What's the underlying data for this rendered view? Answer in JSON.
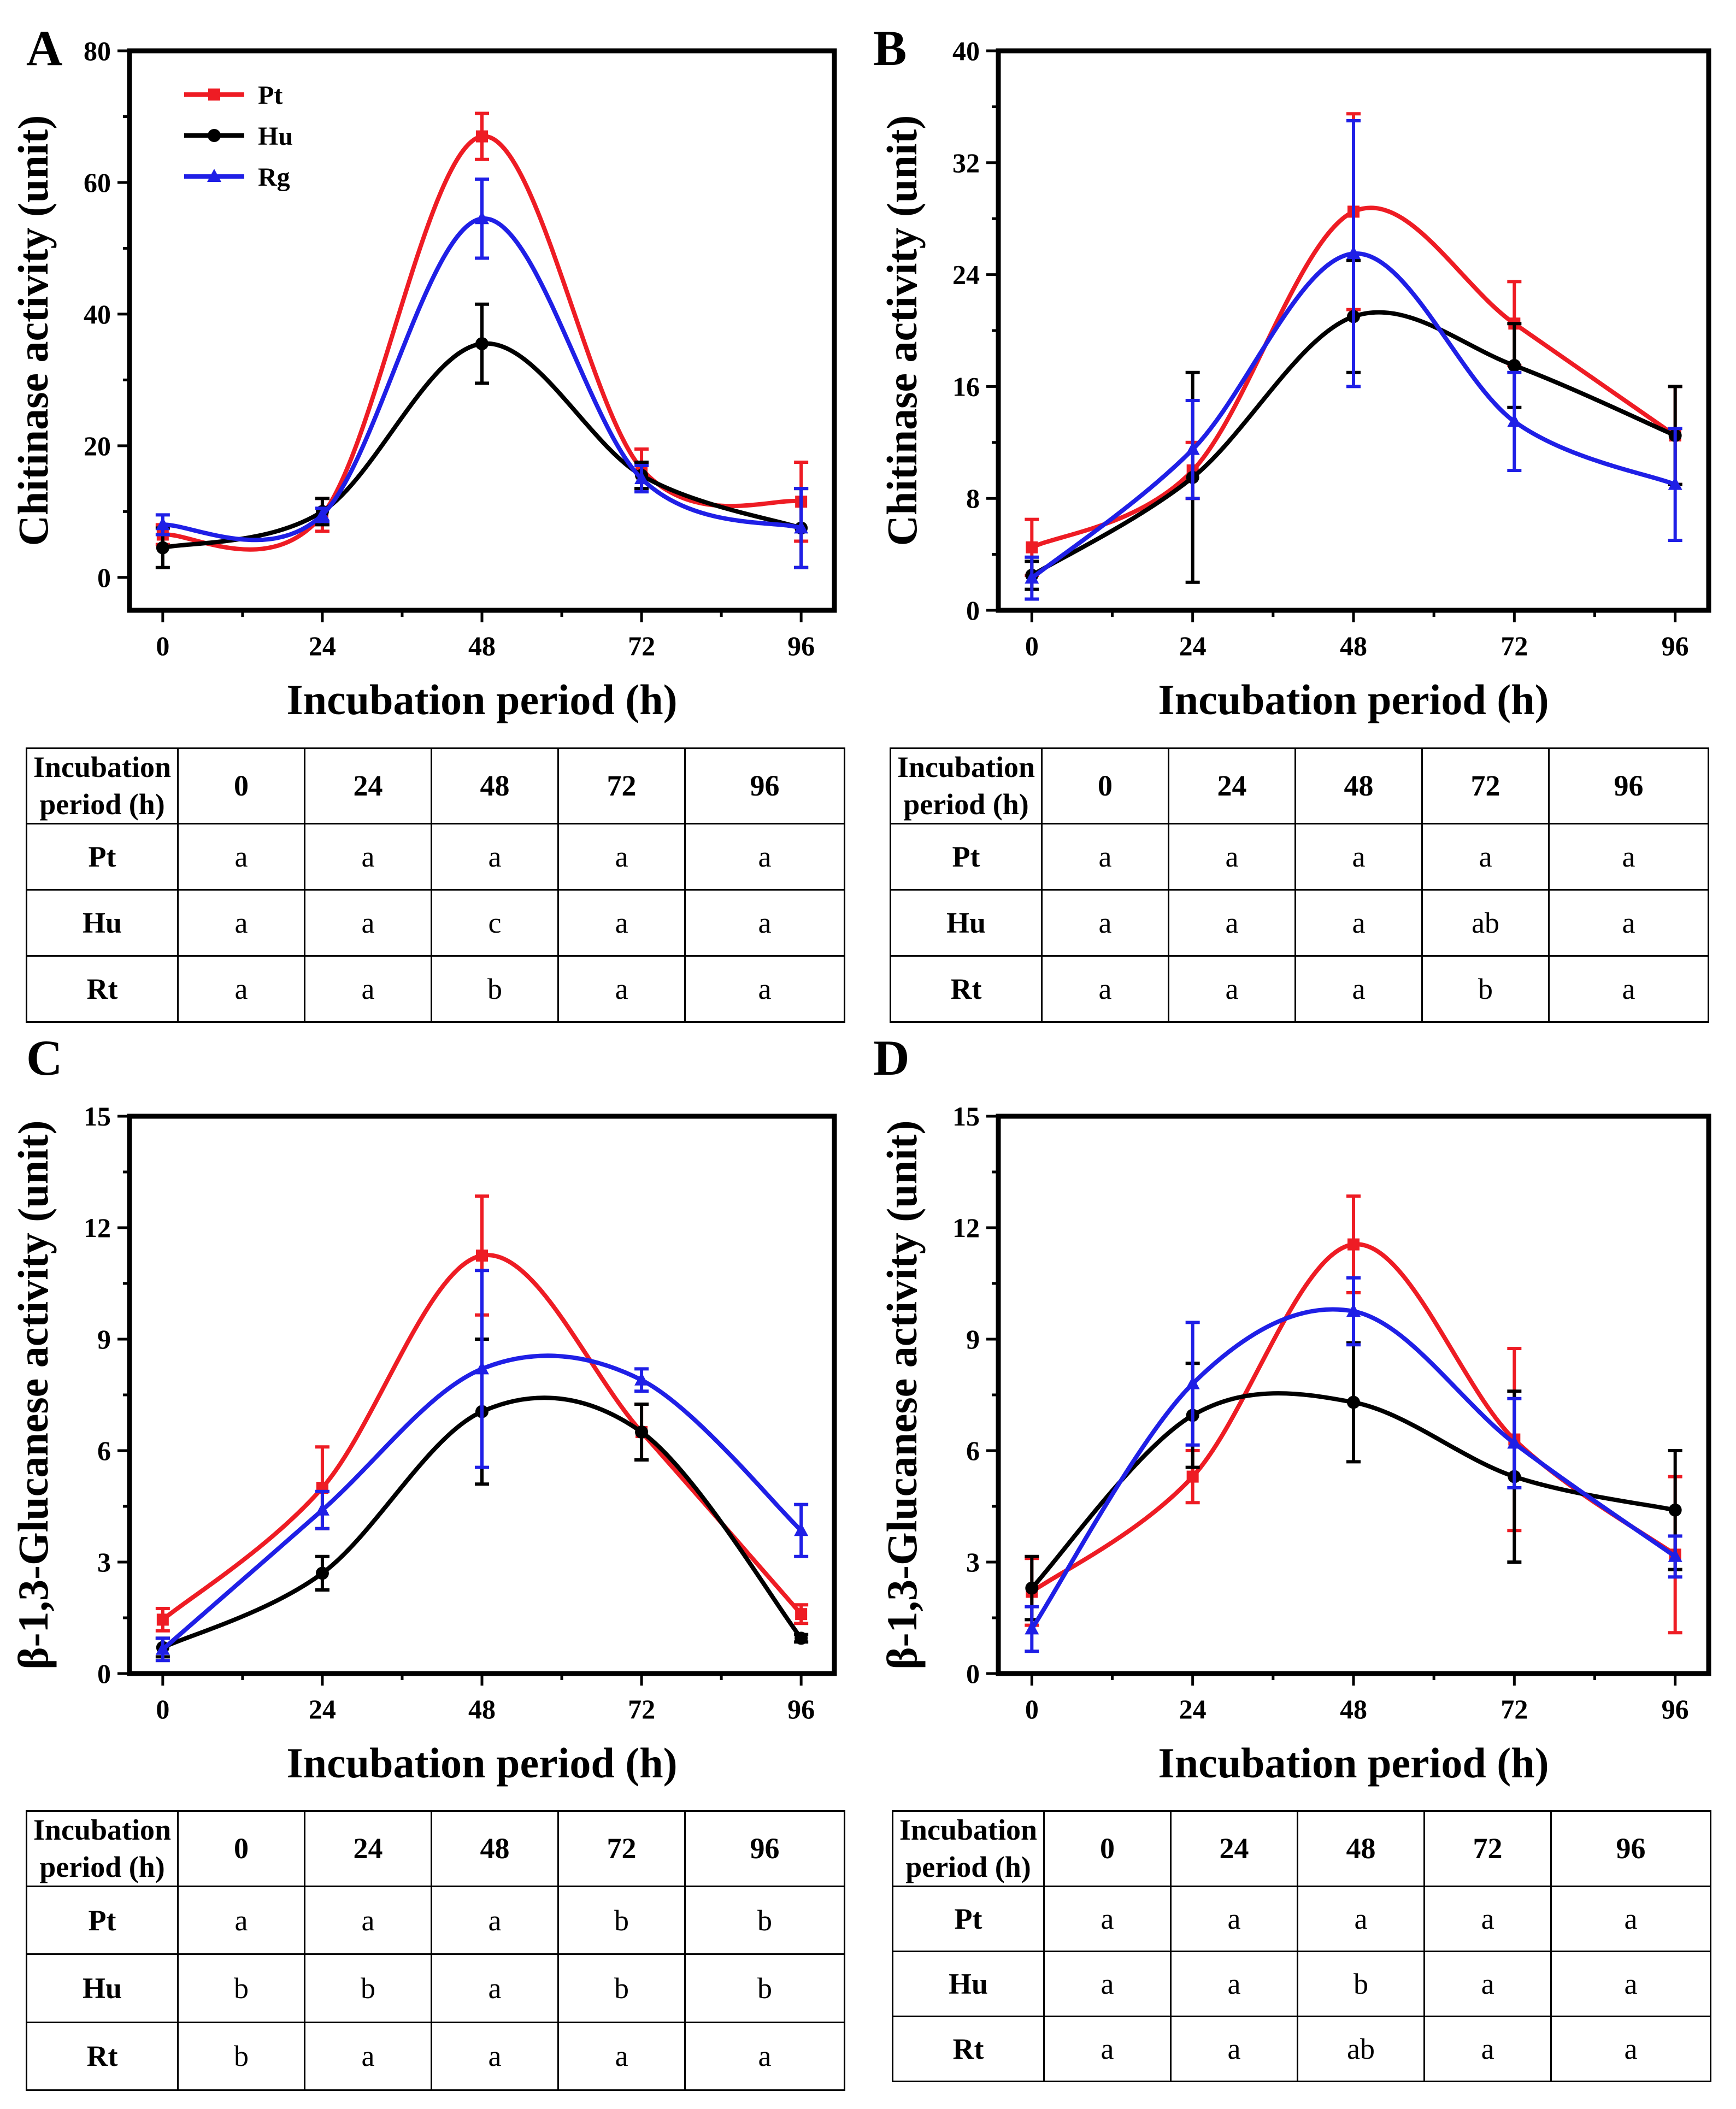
{
  "colors": {
    "Pt": "#ee1c24",
    "Hu": "#000000",
    "Rg": "#1f1fe6"
  },
  "legend": {
    "Pt": "Pt",
    "Hu": "Hu",
    "Rg": "Rg"
  },
  "chart_data": [
    {
      "panel": "A",
      "type": "line",
      "xlabel": "Incubation period (h)",
      "ylabel": "Chitinase activity (unit)",
      "x": [
        0,
        24,
        48,
        72,
        96
      ],
      "xlim": [
        -5,
        101
      ],
      "ylim": [
        -5,
        80
      ],
      "yticks": [
        0,
        20,
        40,
        60,
        80
      ],
      "series": [
        {
          "name": "Pt",
          "values": [
            6.5,
            9.5,
            67,
            16.5,
            11.5
          ],
          "errors": [
            1.5,
            2.5,
            3.5,
            3,
            6
          ]
        },
        {
          "name": "Hu",
          "values": [
            4.5,
            10,
            35.5,
            15.5,
            7.5
          ],
          "errors": [
            3,
            2,
            6,
            2,
            6
          ]
        },
        {
          "name": "Rg",
          "values": [
            8,
            9.5,
            54.5,
            15,
            7.5
          ],
          "errors": [
            1.5,
            1,
            6,
            2,
            6
          ]
        }
      ]
    },
    {
      "panel": "B",
      "type": "line",
      "xlabel": "Incubation period (h)",
      "ylabel": "Chitinase activity (unit)",
      "x": [
        0,
        24,
        48,
        72,
        96
      ],
      "xlim": [
        -5,
        101
      ],
      "ylim": [
        0,
        40
      ],
      "yticks": [
        0,
        8,
        16,
        24,
        32,
        40
      ],
      "series": [
        {
          "name": "Pt",
          "values": [
            4.5,
            10,
            28.5,
            20.5,
            12.5
          ],
          "errors": [
            2,
            2,
            7,
            3,
            3.5
          ]
        },
        {
          "name": "Hu",
          "values": [
            2.5,
            9.5,
            21,
            17.5,
            12.5
          ],
          "errors": [
            1,
            7.5,
            4,
            3,
            3.5
          ]
        },
        {
          "name": "Rg",
          "values": [
            2.3,
            11.5,
            25.5,
            13.5,
            9
          ],
          "errors": [
            1.5,
            3.5,
            9.5,
            3.5,
            4
          ]
        }
      ]
    },
    {
      "panel": "C",
      "type": "line",
      "xlabel": "Incubation period (h)",
      "ylabel": "β-1,3-Glucanese activity (unit)",
      "x": [
        0,
        24,
        48,
        72,
        96
      ],
      "xlim": [
        -5,
        101
      ],
      "ylim": [
        0,
        15
      ],
      "yticks": [
        0,
        3,
        6,
        9,
        12,
        15
      ],
      "series": [
        {
          "name": "Pt",
          "values": [
            1.45,
            5,
            11.25,
            6.5,
            1.6
          ],
          "errors": [
            0.3,
            1.1,
            1.6,
            0.75,
            0.25
          ]
        },
        {
          "name": "Hu",
          "values": [
            0.7,
            2.7,
            7.05,
            6.5,
            0.95
          ],
          "errors": [
            0.25,
            0.45,
            1.95,
            0.75,
            0.1
          ]
        },
        {
          "name": "Rg",
          "values": [
            0.65,
            4.4,
            8.2,
            7.9,
            3.85
          ],
          "errors": [
            0.3,
            0.5,
            2.65,
            0.3,
            0.7
          ]
        }
      ]
    },
    {
      "panel": "D",
      "type": "line",
      "xlabel": "Incubation period (h)",
      "ylabel": "β-1,3-Glucanese activity (unit)",
      "x": [
        0,
        24,
        48,
        72,
        96
      ],
      "xlim": [
        -5,
        101
      ],
      "ylim": [
        0,
        15
      ],
      "yticks": [
        0,
        3,
        6,
        9,
        12,
        15
      ],
      "series": [
        {
          "name": "Pt",
          "values": [
            2.2,
            5.3,
            11.55,
            6.3,
            3.2
          ],
          "errors": [
            0.9,
            0.7,
            1.3,
            2.45,
            2.1
          ]
        },
        {
          "name": "Hu",
          "values": [
            2.3,
            6.95,
            7.3,
            5.3,
            4.4
          ],
          "errors": [
            0.85,
            1.4,
            1.6,
            2.3,
            1.6
          ]
        },
        {
          "name": "Rg",
          "values": [
            1.2,
            7.8,
            9.75,
            6.2,
            3.15
          ],
          "errors": [
            0.6,
            1.65,
            0.9,
            1.2,
            0.55
          ]
        }
      ]
    }
  ],
  "tables": [
    {
      "header": {
        "line1": "Incubation",
        "line2": "period (h)"
      },
      "cols": [
        "0",
        "24",
        "48",
        "72",
        "96"
      ],
      "rows": [
        {
          "label": "Pt",
          "cells": [
            "a",
            "a",
            "a",
            "a",
            "a"
          ]
        },
        {
          "label": "Hu",
          "cells": [
            "a",
            "a",
            "c",
            "a",
            "a"
          ]
        },
        {
          "label": "Rt",
          "cells": [
            "a",
            "a",
            "b",
            "a",
            "a"
          ]
        }
      ]
    },
    {
      "header": {
        "line1": "Incubation",
        "line2": "period (h)"
      },
      "cols": [
        "0",
        "24",
        "48",
        "72",
        "96"
      ],
      "rows": [
        {
          "label": "Pt",
          "cells": [
            "a",
            "a",
            "a",
            "a",
            "a"
          ]
        },
        {
          "label": "Hu",
          "cells": [
            "a",
            "a",
            "a",
            "ab",
            "a"
          ]
        },
        {
          "label": "Rt",
          "cells": [
            "a",
            "a",
            "a",
            "b",
            "a"
          ]
        }
      ]
    },
    {
      "header": {
        "line1": "Incubation",
        "line2": "period (h)"
      },
      "cols": [
        "0",
        "24",
        "48",
        "72",
        "96"
      ],
      "rows": [
        {
          "label": "Pt",
          "cells": [
            "a",
            "a",
            "a",
            "b",
            "b"
          ]
        },
        {
          "label": "Hu",
          "cells": [
            "b",
            "b",
            "a",
            "b",
            "b"
          ]
        },
        {
          "label": "Rt",
          "cells": [
            "b",
            "a",
            "a",
            "a",
            "a"
          ]
        }
      ]
    },
    {
      "header": {
        "line1": "Incubation",
        "line2": "period (h)"
      },
      "cols": [
        "0",
        "24",
        "48",
        "72",
        "96"
      ],
      "rows": [
        {
          "label": "Pt",
          "cells": [
            "a",
            "a",
            "a",
            "a",
            "a"
          ]
        },
        {
          "label": "Hu",
          "cells": [
            "a",
            "a",
            "b",
            "a",
            "a"
          ]
        },
        {
          "label": "Rt",
          "cells": [
            "a",
            "a",
            "ab",
            "a",
            "a"
          ]
        }
      ]
    }
  ]
}
